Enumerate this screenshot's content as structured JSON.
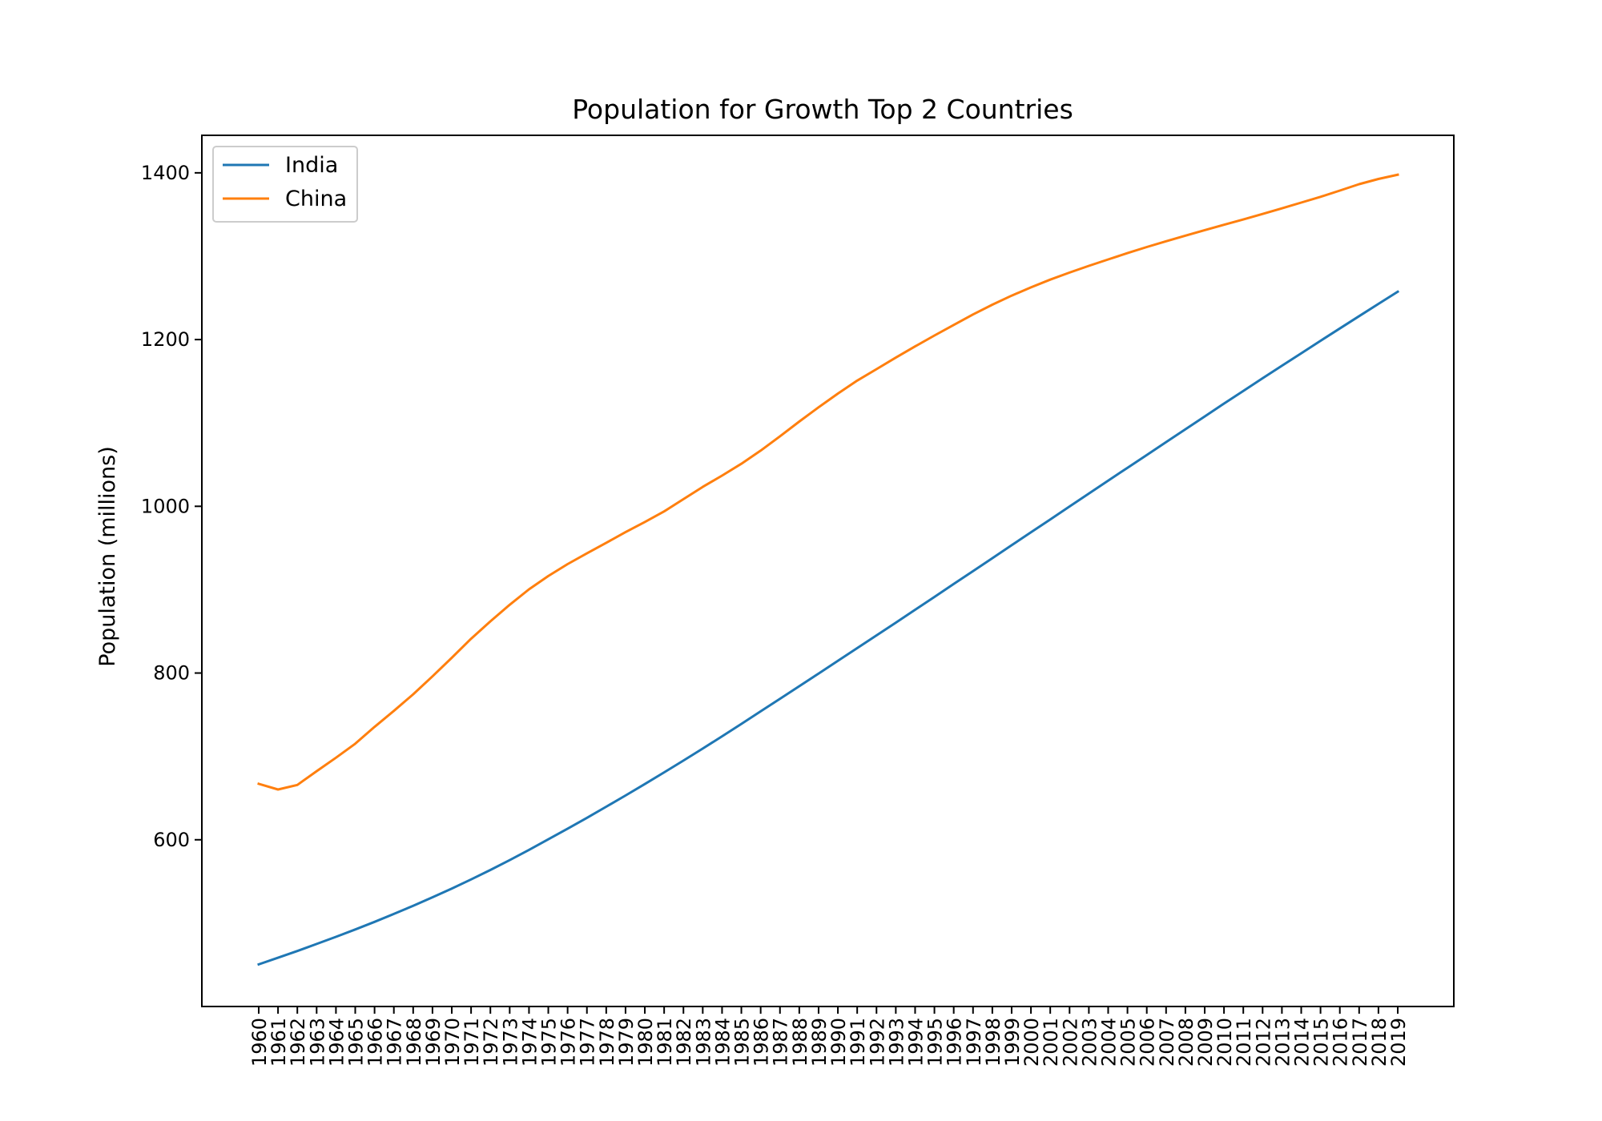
{
  "chart_data": {
    "type": "line",
    "title": "Population for Growth Top 2 Countries",
    "xlabel": "",
    "ylabel": "Population (millions)",
    "ylim": [
      400,
      1445
    ],
    "yticks": [
      "600",
      "800",
      "1000",
      "1200",
      "1400"
    ],
    "grid": false,
    "legend_position": "top-left",
    "x": [
      "1960",
      "1961",
      "1962",
      "1963",
      "1964",
      "1965",
      "1966",
      "1967",
      "1968",
      "1969",
      "1970",
      "1971",
      "1972",
      "1973",
      "1974",
      "1975",
      "1976",
      "1977",
      "1978",
      "1979",
      "1980",
      "1981",
      "1982",
      "1983",
      "1984",
      "1985",
      "1986",
      "1987",
      "1988",
      "1989",
      "1990",
      "1991",
      "1992",
      "1993",
      "1994",
      "1995",
      "1996",
      "1997",
      "1998",
      "1999",
      "2000",
      "2001",
      "2002",
      "2003",
      "2004",
      "2005",
      "2006",
      "2007",
      "2008",
      "2009",
      "2010",
      "2011",
      "2012",
      "2013",
      "2014",
      "2015",
      "2016",
      "2017",
      "2018",
      "2019"
    ],
    "series": [
      {
        "name": "India",
        "color": "#1f77b4",
        "values": [
          450.5,
          458.5,
          466.6,
          475.0,
          483.6,
          492.4,
          501.5,
          511.0,
          520.8,
          531.0,
          541.5,
          552.4,
          563.8,
          575.6,
          587.9,
          600.5,
          613.3,
          626.3,
          639.6,
          653.1,
          666.8,
          680.8,
          695.0,
          709.4,
          724.1,
          739.0,
          754.0,
          769.0,
          784.2,
          799.4,
          814.6,
          829.9,
          845.2,
          860.5,
          875.9,
          891.3,
          906.8,
          922.3,
          937.8,
          953.3,
          968.8,
          984.3,
          999.8,
          1015.3,
          1030.8,
          1046.2,
          1061.6,
          1077.0,
          1092.4,
          1107.8,
          1123.2,
          1138.4,
          1153.6,
          1168.6,
          1183.6,
          1198.5,
          1213.3,
          1228.1,
          1242.8,
          1257.4
        ]
      },
      {
        "name": "China",
        "color": "#ff7f0e",
        "values": [
          667.1,
          660.3,
          665.8,
          682.3,
          698.4,
          715.2,
          735.4,
          754.6,
          774.5,
          796.0,
          818.3,
          841.1,
          862.0,
          881.9,
          900.4,
          916.4,
          930.7,
          943.5,
          956.2,
          969.0,
          981.2,
          993.9,
          1008.6,
          1023.3,
          1036.8,
          1051.0,
          1066.8,
          1084.0,
          1101.6,
          1118.7,
          1135.2,
          1150.8,
          1164.5,
          1178.4,
          1191.8,
          1204.9,
          1217.6,
          1230.1,
          1241.9,
          1252.7,
          1262.6,
          1271.9,
          1280.4,
          1288.4,
          1296.1,
          1303.7,
          1311.0,
          1317.9,
          1324.7,
          1331.3,
          1337.7,
          1344.1,
          1350.7,
          1357.4,
          1364.3,
          1371.2,
          1378.7,
          1386.4,
          1392.7,
          1397.7
        ]
      }
    ]
  }
}
